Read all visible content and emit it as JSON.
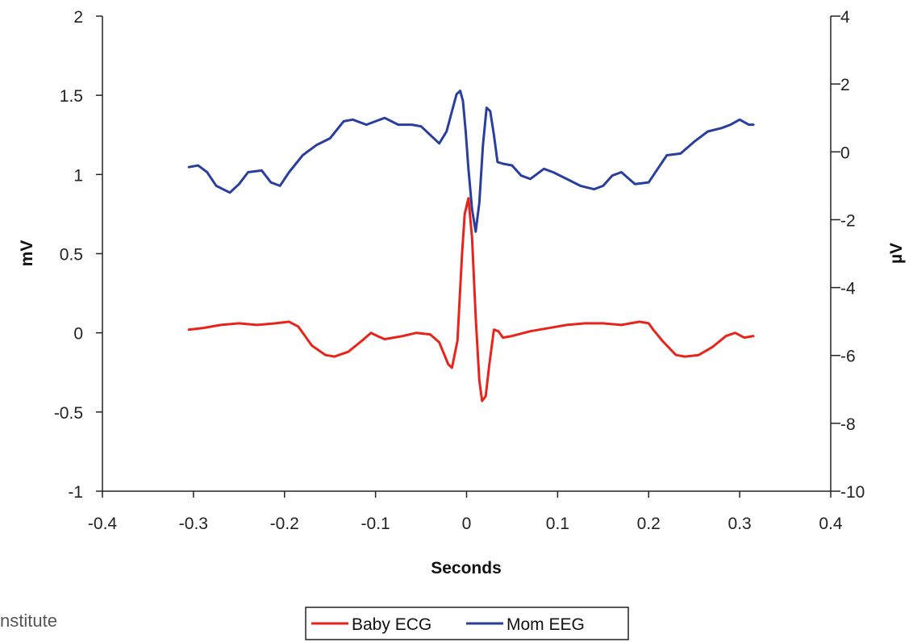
{
  "chart_data": {
    "type": "line",
    "xlabel": "Seconds",
    "ylabel": "mV",
    "y2label": "µV",
    "xlim": [
      -0.4,
      0.4
    ],
    "ylim": [
      -1,
      2
    ],
    "y2lim": [
      -10,
      4
    ],
    "x_ticks": [
      "-0.4",
      "-0.3",
      "-0.2",
      "-0.1",
      "0",
      "0.1",
      "0.2",
      "0.3",
      "0.4"
    ],
    "y_ticks": [
      "-1",
      "-0.5",
      "0",
      "0.5",
      "1",
      "1.5",
      "2"
    ],
    "y2_ticks": [
      "-10",
      "-8",
      "-6",
      "-4",
      "-2",
      "0",
      "2",
      "4"
    ],
    "grid": false,
    "legend_position": "bottom",
    "series": [
      {
        "name": "Baby ECG",
        "axis": "left",
        "color": "#e8231a",
        "x": [
          -0.305,
          -0.29,
          -0.27,
          -0.25,
          -0.23,
          -0.21,
          -0.195,
          -0.185,
          -0.17,
          -0.155,
          -0.145,
          -0.13,
          -0.115,
          -0.105,
          -0.098,
          -0.09,
          -0.08,
          -0.07,
          -0.055,
          -0.04,
          -0.03,
          -0.02,
          -0.016,
          -0.01,
          -0.005,
          -0.002,
          0.002,
          0.006,
          0.01,
          0.014,
          0.017,
          0.021,
          0.025,
          0.03,
          0.035,
          0.04,
          0.05,
          0.07,
          0.09,
          0.11,
          0.13,
          0.15,
          0.17,
          0.19,
          0.2,
          0.205,
          0.215,
          0.23,
          0.24,
          0.255,
          0.27,
          0.285,
          0.295,
          0.305,
          0.315
        ],
        "values": [
          0.02,
          0.03,
          0.05,
          0.06,
          0.05,
          0.06,
          0.07,
          0.04,
          -0.08,
          -0.14,
          -0.15,
          -0.12,
          -0.05,
          0.0,
          -0.02,
          -0.04,
          -0.03,
          -0.02,
          0.0,
          -0.01,
          -0.06,
          -0.2,
          -0.22,
          -0.05,
          0.5,
          0.75,
          0.85,
          0.6,
          0.1,
          -0.3,
          -0.43,
          -0.4,
          -0.2,
          0.02,
          0.01,
          -0.03,
          -0.02,
          0.01,
          0.03,
          0.05,
          0.06,
          0.06,
          0.05,
          0.07,
          0.06,
          0.02,
          -0.05,
          -0.14,
          -0.15,
          -0.14,
          -0.09,
          -0.02,
          0.0,
          -0.03,
          -0.02
        ]
      },
      {
        "name": "Mom EEG",
        "axis": "right",
        "color": "#2a3f9d",
        "x": [
          -0.305,
          -0.295,
          -0.285,
          -0.275,
          -0.26,
          -0.25,
          -0.24,
          -0.225,
          -0.215,
          -0.205,
          -0.195,
          -0.18,
          -0.165,
          -0.15,
          -0.135,
          -0.125,
          -0.11,
          -0.1,
          -0.09,
          -0.075,
          -0.06,
          -0.05,
          -0.04,
          -0.03,
          -0.022,
          -0.016,
          -0.011,
          -0.007,
          -0.004,
          -0.001,
          0.002,
          0.006,
          0.01,
          0.014,
          0.018,
          0.022,
          0.026,
          0.03,
          0.034,
          0.04,
          0.05,
          0.06,
          0.07,
          0.085,
          0.095,
          0.11,
          0.125,
          0.14,
          0.15,
          0.16,
          0.17,
          0.185,
          0.2,
          0.21,
          0.22,
          0.235,
          0.25,
          0.265,
          0.28,
          0.29,
          0.3,
          0.31,
          0.315
        ],
        "values": [
          -0.45,
          -0.4,
          -0.6,
          -1.0,
          -1.2,
          -0.95,
          -0.6,
          -0.55,
          -0.9,
          -1.0,
          -0.6,
          -0.1,
          0.2,
          0.4,
          0.9,
          0.95,
          0.8,
          0.9,
          1.0,
          0.8,
          0.8,
          0.75,
          0.5,
          0.25,
          0.6,
          1.2,
          1.7,
          1.8,
          1.5,
          0.6,
          -0.5,
          -1.7,
          -2.35,
          -1.5,
          0.2,
          1.3,
          1.2,
          0.5,
          -0.3,
          -0.35,
          -0.4,
          -0.7,
          -0.8,
          -0.5,
          -0.6,
          -0.8,
          -1.0,
          -1.1,
          -1.0,
          -0.7,
          -0.6,
          -0.95,
          -0.9,
          -0.5,
          -0.1,
          -0.05,
          0.3,
          0.6,
          0.7,
          0.8,
          0.95,
          0.8,
          0.8
        ]
      }
    ]
  },
  "watermark": "nstitute"
}
